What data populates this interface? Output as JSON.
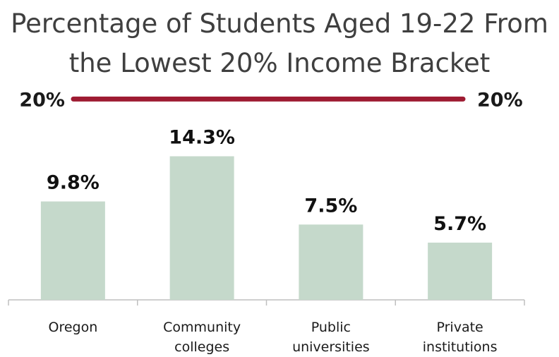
{
  "chart_data": {
    "type": "bar",
    "title_lines": [
      "Percentage of Students Aged 19-22 From",
      "the Lowest 20% Income Bracket"
    ],
    "categories": [
      [
        "Oregon"
      ],
      [
        "Community",
        "colleges"
      ],
      [
        "Public",
        "universities"
      ],
      [
        "Private",
        "institutions"
      ]
    ],
    "values": [
      9.8,
      14.3,
      7.5,
      5.7
    ],
    "value_labels": [
      "9.8%",
      "14.3%",
      "7.5%",
      "5.7%"
    ],
    "ylim": [
      0,
      26
    ],
    "reference_line": {
      "value": 20,
      "label_left": "20%",
      "label_right": "20%",
      "color": "#9e1b32"
    },
    "bar_color": "#c5d9cb",
    "axis_color": "#bfbfbf",
    "grid": false
  }
}
